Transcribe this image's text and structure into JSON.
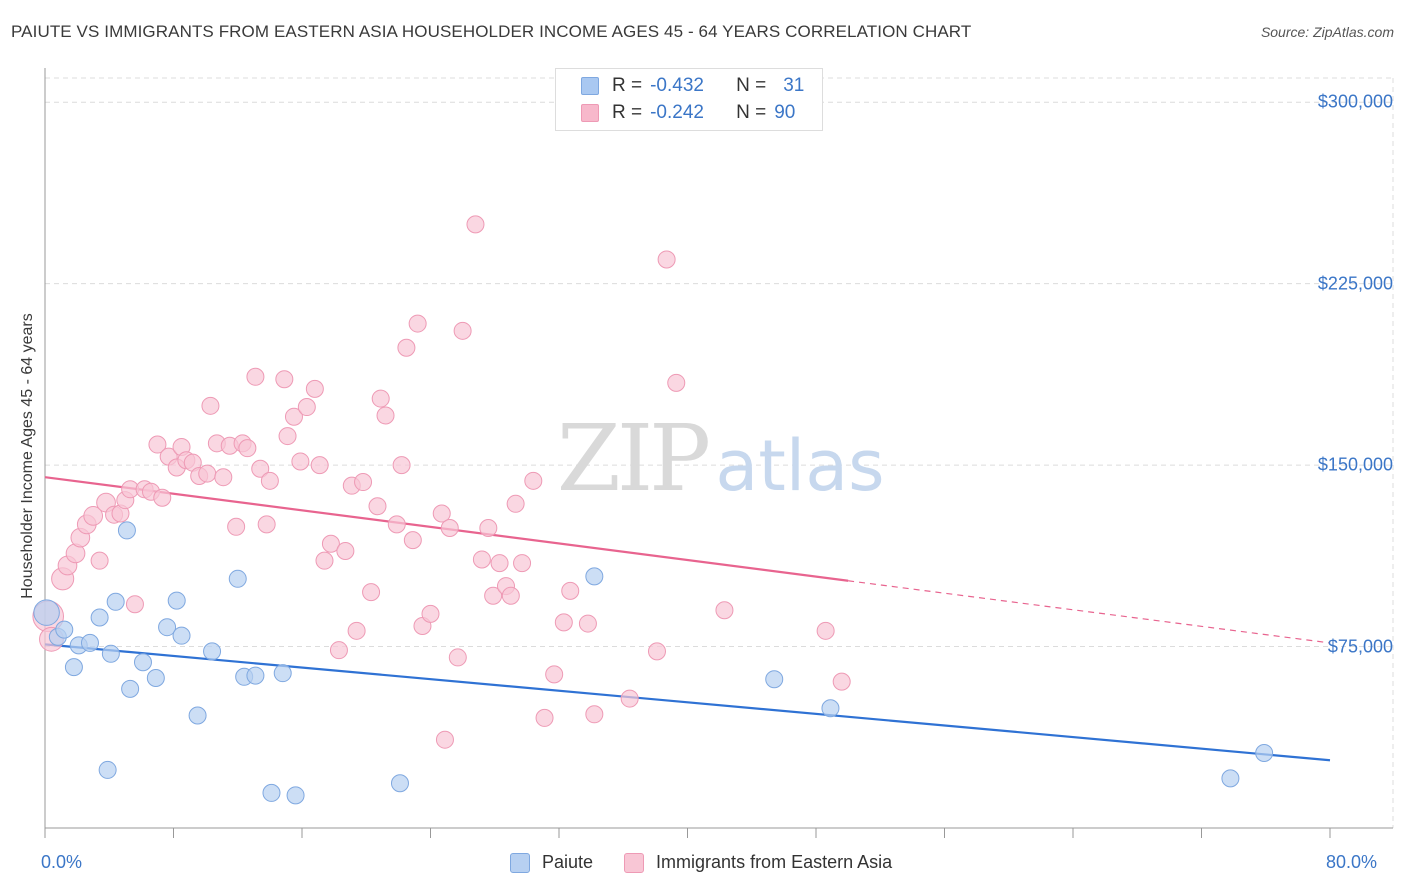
{
  "header": {
    "title": "PAIUTE VS IMMIGRANTS FROM EASTERN ASIA HOUSEHOLDER INCOME AGES 45 - 64 YEARS CORRELATION CHART",
    "source": "Source: ZipAtlas.com"
  },
  "watermark": {
    "zip": "ZIP",
    "atlas": "atlas"
  },
  "stats_legend": [
    {
      "r_label": "R =",
      "r_value": "-0.432",
      "n_label": "N =",
      "n_value": "31",
      "color": "#a9c8f1"
    },
    {
      "r_label": "R =",
      "r_value": "-0.242",
      "n_label": "N =",
      "n_value": "90",
      "color": "#f7b8cb"
    }
  ],
  "colors": {
    "blue_fill": "#b7d0f1",
    "blue_stroke": "#7fa8e0",
    "blue_line": "#2f72d4",
    "pink_fill": "#f8c6d5",
    "pink_stroke": "#ee9ab5",
    "pink_line": "#e8648f",
    "tick_text": "#3b76c7",
    "grid": "#dcdcdc"
  },
  "chart_data": {
    "type": "scatter",
    "title": "PAIUTE VS IMMIGRANTS FROM EASTERN ASIA HOUSEHOLDER INCOME AGES 45 - 64 YEARS CORRELATION CHART",
    "xlabel": "",
    "ylabel": "Householder Income Ages 45 - 64 years",
    "xlim": [
      0,
      80
    ],
    "ylim": [
      0,
      310000
    ],
    "x_tick_labels": [
      "0.0%",
      "80.0%"
    ],
    "y_ticks": [
      75000,
      150000,
      225000,
      300000
    ],
    "y_tick_labels": [
      "$75,000",
      "$150,000",
      "$225,000",
      "$300,000"
    ],
    "legend_position": "bottom-center",
    "series": [
      {
        "name": "Paiute",
        "r": -0.432,
        "n": 31,
        "trend": {
          "x": [
            0,
            80
          ],
          "y": [
            75900,
            28000
          ],
          "dashed_from_x": null
        },
        "points": [
          {
            "x": 0.1,
            "y": 89000,
            "s": 15
          },
          {
            "x": 0.8,
            "y": 79000,
            "s": 10
          },
          {
            "x": 1.2,
            "y": 82000,
            "s": 10
          },
          {
            "x": 1.8,
            "y": 66500,
            "s": 10
          },
          {
            "x": 2.1,
            "y": 75500,
            "s": 10
          },
          {
            "x": 2.8,
            "y": 76500,
            "s": 10
          },
          {
            "x": 3.4,
            "y": 87000,
            "s": 10
          },
          {
            "x": 3.9,
            "y": 24000,
            "s": 10
          },
          {
            "x": 4.1,
            "y": 72000,
            "s": 10
          },
          {
            "x": 4.4,
            "y": 93500,
            "s": 10
          },
          {
            "x": 5.1,
            "y": 123000,
            "s": 10
          },
          {
            "x": 5.3,
            "y": 57500,
            "s": 10
          },
          {
            "x": 6.1,
            "y": 68500,
            "s": 10
          },
          {
            "x": 6.9,
            "y": 62000,
            "s": 10
          },
          {
            "x": 7.6,
            "y": 83000,
            "s": 10
          },
          {
            "x": 8.2,
            "y": 94000,
            "s": 10
          },
          {
            "x": 8.5,
            "y": 79500,
            "s": 10
          },
          {
            "x": 9.5,
            "y": 46500,
            "s": 10
          },
          {
            "x": 10.4,
            "y": 73000,
            "s": 10
          },
          {
            "x": 12.0,
            "y": 103000,
            "s": 10
          },
          {
            "x": 12.4,
            "y": 62500,
            "s": 10
          },
          {
            "x": 13.1,
            "y": 63000,
            "s": 10
          },
          {
            "x": 14.1,
            "y": 14500,
            "s": 10
          },
          {
            "x": 14.8,
            "y": 64000,
            "s": 10
          },
          {
            "x": 15.6,
            "y": 13500,
            "s": 10
          },
          {
            "x": 22.1,
            "y": 18500,
            "s": 10
          },
          {
            "x": 34.2,
            "y": 104000,
            "s": 10
          },
          {
            "x": 45.4,
            "y": 61500,
            "s": 10
          },
          {
            "x": 48.9,
            "y": 49500,
            "s": 10
          },
          {
            "x": 73.8,
            "y": 20500,
            "s": 10
          },
          {
            "x": 75.9,
            "y": 31000,
            "s": 10
          }
        ]
      },
      {
        "name": "Immigrants from Eastern Asia",
        "r": -0.242,
        "n": 90,
        "trend": {
          "x": [
            0,
            80
          ],
          "y": [
            145000,
            76500
          ],
          "dashed_from_x": 50
        },
        "points": [
          {
            "x": 0.2,
            "y": 87500,
            "s": 18
          },
          {
            "x": 0.4,
            "y": 78000,
            "s": 14
          },
          {
            "x": 1.1,
            "y": 103000,
            "s": 13
          },
          {
            "x": 1.4,
            "y": 108500,
            "s": 11
          },
          {
            "x": 1.9,
            "y": 113500,
            "s": 11
          },
          {
            "x": 2.2,
            "y": 120000,
            "s": 11
          },
          {
            "x": 2.6,
            "y": 125500,
            "s": 11
          },
          {
            "x": 3.0,
            "y": 129000,
            "s": 11
          },
          {
            "x": 3.4,
            "y": 110500,
            "s": 10
          },
          {
            "x": 3.8,
            "y": 134500,
            "s": 11
          },
          {
            "x": 4.3,
            "y": 129500,
            "s": 10
          },
          {
            "x": 4.7,
            "y": 130000,
            "s": 10
          },
          {
            "x": 5.0,
            "y": 135500,
            "s": 10
          },
          {
            "x": 5.3,
            "y": 140000,
            "s": 10
          },
          {
            "x": 5.6,
            "y": 92500,
            "s": 10
          },
          {
            "x": 6.2,
            "y": 140000,
            "s": 10
          },
          {
            "x": 6.6,
            "y": 139000,
            "s": 10
          },
          {
            "x": 7.0,
            "y": 158500,
            "s": 10
          },
          {
            "x": 7.3,
            "y": 136500,
            "s": 10
          },
          {
            "x": 7.7,
            "y": 153500,
            "s": 10
          },
          {
            "x": 8.2,
            "y": 149000,
            "s": 10
          },
          {
            "x": 8.5,
            "y": 157500,
            "s": 10
          },
          {
            "x": 8.8,
            "y": 152000,
            "s": 10
          },
          {
            "x": 9.2,
            "y": 151000,
            "s": 10
          },
          {
            "x": 9.6,
            "y": 145500,
            "s": 10
          },
          {
            "x": 10.1,
            "y": 146500,
            "s": 10
          },
          {
            "x": 10.3,
            "y": 174500,
            "s": 10
          },
          {
            "x": 10.7,
            "y": 159000,
            "s": 10
          },
          {
            "x": 11.1,
            "y": 145000,
            "s": 10
          },
          {
            "x": 11.5,
            "y": 158000,
            "s": 10
          },
          {
            "x": 11.9,
            "y": 124500,
            "s": 10
          },
          {
            "x": 12.3,
            "y": 159000,
            "s": 10
          },
          {
            "x": 12.6,
            "y": 157000,
            "s": 10
          },
          {
            "x": 13.1,
            "y": 186500,
            "s": 10
          },
          {
            "x": 13.4,
            "y": 148500,
            "s": 10
          },
          {
            "x": 13.8,
            "y": 125500,
            "s": 10
          },
          {
            "x": 14.0,
            "y": 143500,
            "s": 10
          },
          {
            "x": 14.9,
            "y": 185500,
            "s": 10
          },
          {
            "x": 15.1,
            "y": 162000,
            "s": 10
          },
          {
            "x": 15.5,
            "y": 170000,
            "s": 10
          },
          {
            "x": 15.9,
            "y": 151500,
            "s": 10
          },
          {
            "x": 16.3,
            "y": 174000,
            "s": 10
          },
          {
            "x": 16.8,
            "y": 181500,
            "s": 10
          },
          {
            "x": 17.1,
            "y": 150000,
            "s": 10
          },
          {
            "x": 17.4,
            "y": 110500,
            "s": 10
          },
          {
            "x": 17.8,
            "y": 117500,
            "s": 10
          },
          {
            "x": 18.3,
            "y": 73500,
            "s": 10
          },
          {
            "x": 18.7,
            "y": 114500,
            "s": 10
          },
          {
            "x": 19.1,
            "y": 141500,
            "s": 10
          },
          {
            "x": 19.4,
            "y": 81500,
            "s": 10
          },
          {
            "x": 19.8,
            "y": 143000,
            "s": 10
          },
          {
            "x": 20.3,
            "y": 97500,
            "s": 10
          },
          {
            "x": 20.7,
            "y": 133000,
            "s": 10
          },
          {
            "x": 20.9,
            "y": 177500,
            "s": 10
          },
          {
            "x": 21.2,
            "y": 170500,
            "s": 10
          },
          {
            "x": 21.9,
            "y": 125500,
            "s": 10
          },
          {
            "x": 22.2,
            "y": 150000,
            "s": 10
          },
          {
            "x": 22.5,
            "y": 198500,
            "s": 10
          },
          {
            "x": 22.9,
            "y": 119000,
            "s": 10
          },
          {
            "x": 23.2,
            "y": 208500,
            "s": 10
          },
          {
            "x": 23.5,
            "y": 83500,
            "s": 10
          },
          {
            "x": 24.0,
            "y": 88500,
            "s": 10
          },
          {
            "x": 24.7,
            "y": 130000,
            "s": 10
          },
          {
            "x": 24.9,
            "y": 36500,
            "s": 10
          },
          {
            "x": 25.2,
            "y": 124000,
            "s": 10
          },
          {
            "x": 25.7,
            "y": 70500,
            "s": 10
          },
          {
            "x": 26.0,
            "y": 205500,
            "s": 10
          },
          {
            "x": 26.8,
            "y": 249500,
            "s": 10
          },
          {
            "x": 27.2,
            "y": 111000,
            "s": 10
          },
          {
            "x": 27.6,
            "y": 124000,
            "s": 10
          },
          {
            "x": 27.9,
            "y": 96000,
            "s": 10
          },
          {
            "x": 28.3,
            "y": 109500,
            "s": 10
          },
          {
            "x": 28.7,
            "y": 100000,
            "s": 10
          },
          {
            "x": 29.0,
            "y": 96000,
            "s": 10
          },
          {
            "x": 29.3,
            "y": 134000,
            "s": 10
          },
          {
            "x": 29.7,
            "y": 109500,
            "s": 10
          },
          {
            "x": 30.4,
            "y": 143500,
            "s": 10
          },
          {
            "x": 31.1,
            "y": 45500,
            "s": 10
          },
          {
            "x": 31.7,
            "y": 63500,
            "s": 10
          },
          {
            "x": 32.3,
            "y": 85000,
            "s": 10
          },
          {
            "x": 32.7,
            "y": 98000,
            "s": 10
          },
          {
            "x": 33.8,
            "y": 84500,
            "s": 10
          },
          {
            "x": 34.2,
            "y": 47000,
            "s": 10
          },
          {
            "x": 36.4,
            "y": 53500,
            "s": 10
          },
          {
            "x": 38.1,
            "y": 73000,
            "s": 10
          },
          {
            "x": 38.7,
            "y": 235000,
            "s": 10
          },
          {
            "x": 39.3,
            "y": 184000,
            "s": 10
          },
          {
            "x": 42.3,
            "y": 90000,
            "s": 10
          },
          {
            "x": 48.6,
            "y": 81500,
            "s": 10
          },
          {
            "x": 49.6,
            "y": 60500,
            "s": 10
          }
        ]
      }
    ]
  },
  "bottom_legend": [
    {
      "label": "Paiute",
      "color": "#b7d0f1"
    },
    {
      "label": "Immigrants from Eastern Asia",
      "color": "#f8c6d5"
    }
  ]
}
